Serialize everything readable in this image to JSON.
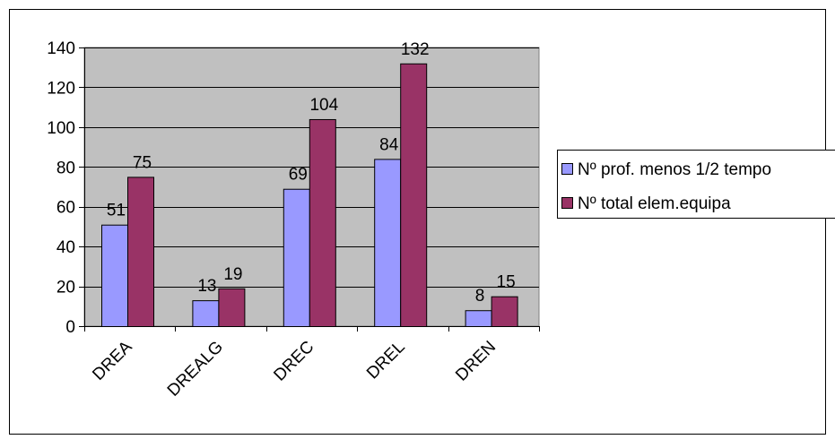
{
  "chart_data": {
    "type": "bar",
    "categories": [
      "DREA",
      "DREALG",
      "DREC",
      "DREL",
      "DREN"
    ],
    "series": [
      {
        "name": "Nº prof. menos 1/2 tempo",
        "values": [
          51,
          13,
          69,
          84,
          8
        ],
        "color": "#9999ff"
      },
      {
        "name": "Nº total elem.equipa",
        "values": [
          75,
          19,
          104,
          132,
          15
        ],
        "color": "#993366"
      }
    ],
    "ylim": [
      0,
      140
    ],
    "yticks": [
      0,
      20,
      40,
      60,
      80,
      100,
      120,
      140
    ],
    "grid": true,
    "plot_background": "#c0c0c0",
    "legend": "right",
    "data_labels": true
  }
}
